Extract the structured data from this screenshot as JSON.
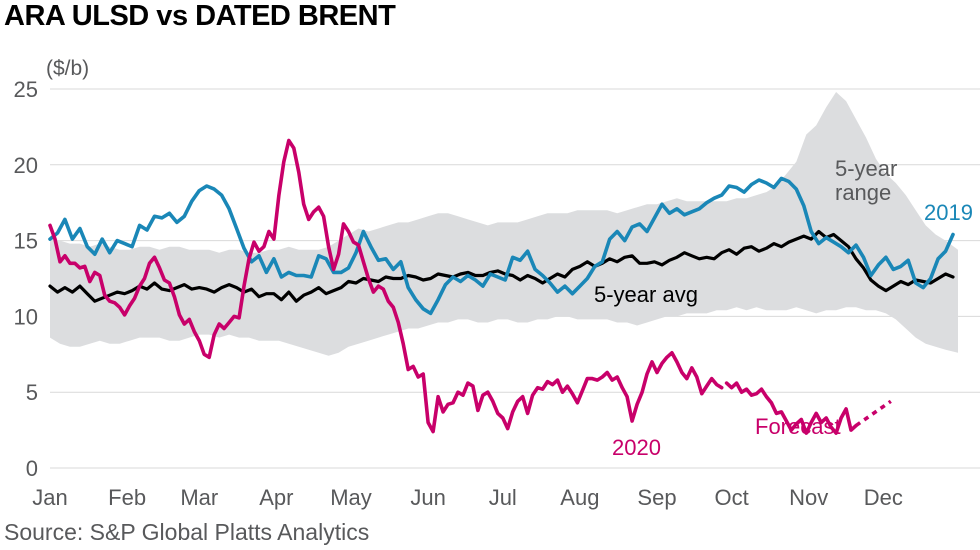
{
  "title": "ARA ULSD vs DATED BRENT",
  "source": "Source: S&P Global Platts Analytics",
  "colors": {
    "s2020": "#c8006a",
    "s2019": "#1a87b7",
    "avg": "#000000",
    "range": "#dcdddf",
    "grid": "#d9d9d9",
    "text": "#58595b"
  },
  "chart_data": {
    "type": "line",
    "title": "ARA ULSD vs DATED BRENT",
    "ylabel": "($/b)",
    "xlabel": "",
    "ylim": [
      0,
      25
    ],
    "xlim": [
      0,
      365
    ],
    "y_ticks": [
      0,
      5,
      10,
      15,
      20,
      25
    ],
    "x_ticks": [
      {
        "label": "Jan",
        "x": 0
      },
      {
        "label": "Feb",
        "x": 31
      },
      {
        "label": "Mar",
        "x": 60
      },
      {
        "label": "Apr",
        "x": 91
      },
      {
        "label": "May",
        "x": 121
      },
      {
        "label": "Jun",
        "x": 152
      },
      {
        "label": "Jul",
        "x": 182
      },
      {
        "label": "Aug",
        "x": 213
      },
      {
        "label": "Sep",
        "x": 244
      },
      {
        "label": "Oct",
        "x": 274
      },
      {
        "label": "Nov",
        "x": 305
      },
      {
        "label": "Dec",
        "x": 335
      }
    ],
    "grid": true,
    "annotations": {
      "range": "5-year\nrange",
      "avg": "5-year avg",
      "s2019": "2019",
      "s2020": "2020",
      "forecast": "Forecast"
    },
    "range_band": {
      "x": [
        0,
        4,
        8,
        12,
        16,
        20,
        24,
        28,
        32,
        36,
        40,
        44,
        48,
        52,
        56,
        60,
        64,
        68,
        72,
        76,
        80,
        84,
        88,
        92,
        96,
        100,
        104,
        108,
        112,
        116,
        120,
        124,
        128,
        132,
        136,
        140,
        144,
        148,
        152,
        156,
        160,
        164,
        168,
        172,
        176,
        180,
        184,
        188,
        192,
        196,
        200,
        204,
        208,
        212,
        216,
        220,
        224,
        228,
        232,
        236,
        240,
        244,
        248,
        252,
        256,
        260,
        264,
        268,
        272,
        276,
        280,
        284,
        288,
        292,
        296,
        300,
        304,
        308,
        312,
        316,
        320,
        324,
        328,
        332,
        336,
        340,
        344,
        348,
        352,
        356,
        360,
        365
      ],
      "high": [
        15.2,
        15.0,
        14.8,
        14.8,
        14.6,
        14.8,
        14.6,
        14.4,
        14.4,
        14.6,
        14.6,
        14.4,
        14.6,
        14.6,
        14.4,
        14.4,
        14.4,
        14.2,
        14.4,
        14.4,
        14.2,
        14.2,
        14.4,
        14.4,
        14.6,
        14.4,
        14.4,
        14.4,
        14.6,
        15.0,
        15.4,
        15.8,
        15.6,
        15.8,
        16.0,
        16.2,
        16.2,
        16.4,
        16.6,
        16.8,
        16.8,
        16.6,
        16.4,
        16.2,
        16.0,
        16.2,
        16.2,
        16.2,
        16.4,
        16.6,
        16.8,
        16.8,
        16.8,
        17.0,
        17.0,
        17.0,
        17.0,
        16.8,
        17.0,
        17.2,
        17.4,
        17.4,
        17.6,
        17.8,
        17.6,
        17.6,
        17.6,
        17.6,
        17.6,
        17.8,
        17.8,
        18.0,
        18.2,
        18.6,
        19.4,
        20.2,
        22.0,
        22.6,
        23.8,
        24.8,
        24.2,
        23.0,
        21.8,
        20.4,
        19.4,
        18.8,
        18.0,
        17.0,
        16.0,
        15.4,
        15.0,
        14.4
      ],
      "low": [
        8.6,
        8.2,
        8.0,
        8.0,
        8.2,
        8.4,
        8.2,
        8.2,
        8.4,
        8.6,
        8.6,
        8.6,
        8.4,
        8.4,
        8.6,
        8.8,
        8.8,
        8.6,
        8.8,
        8.6,
        8.6,
        8.4,
        8.4,
        8.4,
        8.2,
        8.0,
        7.8,
        7.6,
        7.4,
        7.6,
        8.0,
        8.2,
        8.4,
        8.6,
        8.8,
        9.0,
        9.2,
        9.2,
        9.4,
        9.6,
        9.6,
        9.8,
        9.8,
        9.6,
        9.6,
        9.8,
        9.8,
        9.6,
        9.6,
        9.8,
        9.8,
        10.0,
        10.0,
        9.8,
        9.8,
        9.8,
        9.8,
        9.6,
        9.6,
        9.4,
        9.6,
        9.8,
        10.0,
        10.0,
        10.2,
        10.2,
        10.2,
        10.4,
        10.4,
        10.6,
        10.4,
        10.6,
        10.4,
        10.4,
        10.4,
        10.6,
        10.4,
        10.2,
        10.4,
        10.4,
        10.6,
        10.6,
        10.4,
        10.4,
        10.2,
        9.8,
        9.2,
        8.6,
        8.2,
        8.0,
        7.8,
        7.6
      ]
    },
    "series": [
      {
        "name": "5-year avg",
        "x": [
          0,
          3,
          6,
          9,
          12,
          15,
          18,
          21,
          24,
          27,
          30,
          33,
          36,
          39,
          42,
          45,
          48,
          51,
          54,
          57,
          60,
          63,
          66,
          69,
          72,
          75,
          78,
          81,
          84,
          87,
          90,
          93,
          96,
          99,
          102,
          105,
          108,
          111,
          114,
          117,
          120,
          123,
          126,
          129,
          132,
          135,
          138,
          141,
          144,
          147,
          150,
          153,
          156,
          159,
          162,
          165,
          168,
          171,
          174,
          177,
          180,
          183,
          186,
          189,
          192,
          195,
          198,
          201,
          204,
          207,
          210,
          213,
          216,
          219,
          222,
          225,
          228,
          231,
          234,
          237,
          240,
          243,
          246,
          249,
          252,
          255,
          258,
          261,
          264,
          267,
          270,
          273,
          276,
          279,
          282,
          285,
          288,
          291,
          294,
          297,
          300,
          303,
          306,
          309,
          312,
          315,
          318,
          321,
          324,
          327,
          330,
          333,
          336,
          339,
          342,
          345,
          348,
          351,
          354,
          357,
          360,
          363
        ],
        "y": [
          12.0,
          11.6,
          11.9,
          11.6,
          12.0,
          11.5,
          11.0,
          11.2,
          11.4,
          11.6,
          11.5,
          11.7,
          12.0,
          11.8,
          12.2,
          11.8,
          11.7,
          11.9,
          12.1,
          11.8,
          11.9,
          11.8,
          11.6,
          11.9,
          12.1,
          11.9,
          11.6,
          11.8,
          11.3,
          11.5,
          11.5,
          11.1,
          11.6,
          11.0,
          11.4,
          11.6,
          11.9,
          11.5,
          11.7,
          11.9,
          12.3,
          12.2,
          12.5,
          12.4,
          12.3,
          12.6,
          12.5,
          12.5,
          12.7,
          12.6,
          12.4,
          12.5,
          12.8,
          12.7,
          12.6,
          12.8,
          12.9,
          12.7,
          12.7,
          12.9,
          13.0,
          12.8,
          12.7,
          12.4,
          12.7,
          12.5,
          12.2,
          12.5,
          12.8,
          12.6,
          13.1,
          13.3,
          13.6,
          13.3,
          13.5,
          13.8,
          13.6,
          13.9,
          14.0,
          13.5,
          13.5,
          13.6,
          13.4,
          13.7,
          13.9,
          14.2,
          14.0,
          13.8,
          13.9,
          13.8,
          14.2,
          14.4,
          14.1,
          14.5,
          14.6,
          14.3,
          14.5,
          14.8,
          14.6,
          14.9,
          15.1,
          15.3,
          15.1,
          15.6,
          15.2,
          15.4,
          15.0,
          14.6,
          13.8,
          13.2,
          12.4,
          12.0,
          11.7,
          12.0,
          12.3,
          12.1,
          12.4,
          12.3,
          12.2,
          12.5,
          12.8,
          12.6
        ]
      },
      {
        "name": "2019",
        "x": [
          0,
          3,
          6,
          9,
          12,
          15,
          18,
          21,
          24,
          27,
          30,
          33,
          36,
          39,
          42,
          45,
          48,
          51,
          54,
          57,
          60,
          63,
          66,
          69,
          72,
          75,
          78,
          81,
          84,
          87,
          90,
          93,
          96,
          99,
          102,
          105,
          108,
          111,
          114,
          117,
          120,
          123,
          126,
          129,
          132,
          135,
          138,
          141,
          144,
          147,
          150,
          153,
          156,
          159,
          162,
          165,
          168,
          171,
          174,
          177,
          180,
          183,
          186,
          189,
          192,
          195,
          198,
          201,
          204,
          207,
          210,
          213,
          216,
          219,
          222,
          225,
          228,
          231,
          234,
          237,
          240,
          243,
          246,
          249,
          252,
          255,
          258,
          261,
          264,
          267,
          270,
          273,
          276,
          279,
          282,
          285,
          288,
          291,
          294,
          297,
          300,
          303,
          306,
          309,
          312,
          315,
          318,
          321,
          324,
          327,
          330,
          333,
          336,
          339,
          342,
          345,
          348,
          351,
          354,
          357,
          360,
          363
        ],
        "y": [
          15.1,
          15.5,
          16.4,
          15.1,
          15.8,
          14.6,
          14.1,
          15.1,
          14.2,
          15.0,
          14.8,
          14.6,
          16.0,
          15.7,
          16.6,
          16.5,
          16.8,
          16.2,
          16.6,
          17.6,
          18.3,
          18.6,
          18.4,
          18.0,
          17.1,
          15.8,
          14.5,
          13.6,
          14.0,
          12.9,
          13.8,
          12.6,
          12.9,
          12.7,
          12.7,
          12.6,
          14.0,
          13.8,
          12.9,
          12.9,
          13.2,
          14.2,
          15.6,
          14.6,
          13.7,
          13.8,
          13.1,
          13.6,
          11.9,
          11.1,
          10.5,
          10.2,
          11.1,
          12.1,
          12.6,
          12.3,
          12.7,
          12.4,
          12.0,
          12.8,
          12.6,
          12.4,
          13.9,
          13.7,
          14.3,
          13.1,
          12.7,
          12.2,
          11.6,
          12.0,
          11.5,
          12.0,
          12.5,
          13.3,
          13.6,
          15.1,
          15.6,
          15.0,
          15.9,
          16.1,
          15.6,
          16.5,
          17.4,
          16.8,
          17.1,
          16.7,
          16.9,
          17.1,
          17.5,
          17.8,
          18.0,
          18.6,
          18.5,
          18.2,
          18.7,
          19.0,
          18.8,
          18.5,
          19.1,
          18.9,
          18.4,
          17.3,
          15.6,
          14.8,
          15.2,
          14.9,
          14.6,
          14.2,
          14.7,
          13.9,
          12.7,
          13.4,
          13.9,
          13.1,
          13.3,
          13.7,
          12.2,
          11.9,
          12.5,
          13.8,
          14.3,
          15.4
        ]
      },
      {
        "name": "2020",
        "x": [
          0,
          2,
          4,
          6,
          8,
          10,
          12,
          14,
          16,
          18,
          20,
          22,
          24,
          26,
          28,
          30,
          32,
          34,
          36,
          38,
          40,
          42,
          44,
          46,
          48,
          50,
          52,
          54,
          56,
          58,
          60,
          62,
          64,
          66,
          68,
          70,
          72,
          74,
          76,
          78,
          80,
          82,
          84,
          86,
          88,
          90,
          92,
          94,
          96,
          98,
          100,
          102,
          104,
          106,
          108,
          110,
          112,
          114,
          116,
          118,
          120,
          122,
          124,
          126,
          128,
          130,
          132,
          134,
          136,
          138,
          140,
          142,
          144,
          146,
          148,
          150,
          152,
          154,
          156,
          158,
          160,
          162,
          164,
          166,
          168,
          170,
          172,
          174,
          176,
          178,
          180,
          182,
          184,
          186,
          188,
          190,
          192,
          194,
          196,
          198,
          200,
          202,
          204,
          206,
          208,
          210,
          212,
          214,
          216,
          218,
          220,
          222,
          224,
          226,
          228,
          230,
          232,
          234,
          236,
          238,
          240,
          242,
          244,
          246,
          248,
          250,
          252,
          254,
          256,
          258,
          260,
          262,
          264,
          266,
          268,
          270
        ],
        "y": [
          16.0,
          15.1,
          13.6,
          14.0,
          13.5,
          13.5,
          13.2,
          13.3,
          12.3,
          12.9,
          12.7,
          11.4,
          11.0,
          10.9,
          10.6,
          10.1,
          10.7,
          11.2,
          12.0,
          12.5,
          13.5,
          13.9,
          13.2,
          12.4,
          12.2,
          11.3,
          10.1,
          9.5,
          9.8,
          9.0,
          8.4,
          7.5,
          7.3,
          8.8,
          9.5,
          9.2,
          9.6,
          10.0,
          9.9,
          12.0,
          13.8,
          14.9,
          14.3,
          14.6,
          15.6,
          15.1,
          18.0,
          20.2,
          21.6,
          21.1,
          19.5,
          17.4,
          16.4,
          16.9,
          17.2,
          16.6,
          14.6,
          13.1,
          14.1,
          16.1,
          15.6,
          14.9,
          14.7,
          13.6,
          12.5,
          11.6,
          12.0,
          11.8,
          11.0,
          10.6,
          9.6,
          8.2,
          6.5,
          6.7,
          6.0,
          6.2,
          3.0,
          2.4,
          4.7,
          3.7,
          4.2,
          4.3,
          5.0,
          4.8,
          5.6,
          5.4,
          3.8,
          4.8,
          5.0,
          4.4,
          3.6,
          3.3,
          2.6,
          3.7,
          4.4,
          4.7,
          3.6,
          4.8,
          5.3,
          5.2,
          5.7,
          5.5,
          5.8,
          5.0,
          5.4,
          4.9,
          4.3,
          5.1,
          5.9,
          5.9,
          5.8,
          6.0,
          6.3,
          5.8,
          6.0,
          5.3,
          4.7,
          3.1,
          4.2,
          5.0,
          6.2,
          7.0,
          6.3,
          6.9,
          7.3,
          7.6,
          7.0,
          6.3,
          5.9,
          6.6,
          6.0,
          4.9,
          5.4,
          5.9,
          5.5,
          5.3
        ]
      },
      {
        "name": "2020 (cont.)",
        "x": [
          272,
          274,
          276,
          278,
          280,
          282,
          284,
          286,
          288,
          290,
          292,
          294,
          296,
          298,
          300,
          302,
          304,
          306,
          308,
          310,
          312,
          314,
          316,
          318,
          320,
          322,
          324
        ],
        "y": [
          5.6,
          5.3,
          5.6,
          5.0,
          5.2,
          4.8,
          4.9,
          5.2,
          4.7,
          4.3,
          3.6,
          3.7,
          3.1,
          2.5,
          2.9,
          3.2,
          2.3,
          3.0,
          3.6,
          3.0,
          3.3,
          2.7,
          2.3,
          3.3,
          3.9,
          2.5,
          2.8
        ]
      },
      {
        "name": "Forecast",
        "x": [],
        "y": []
      }
    ]
  }
}
